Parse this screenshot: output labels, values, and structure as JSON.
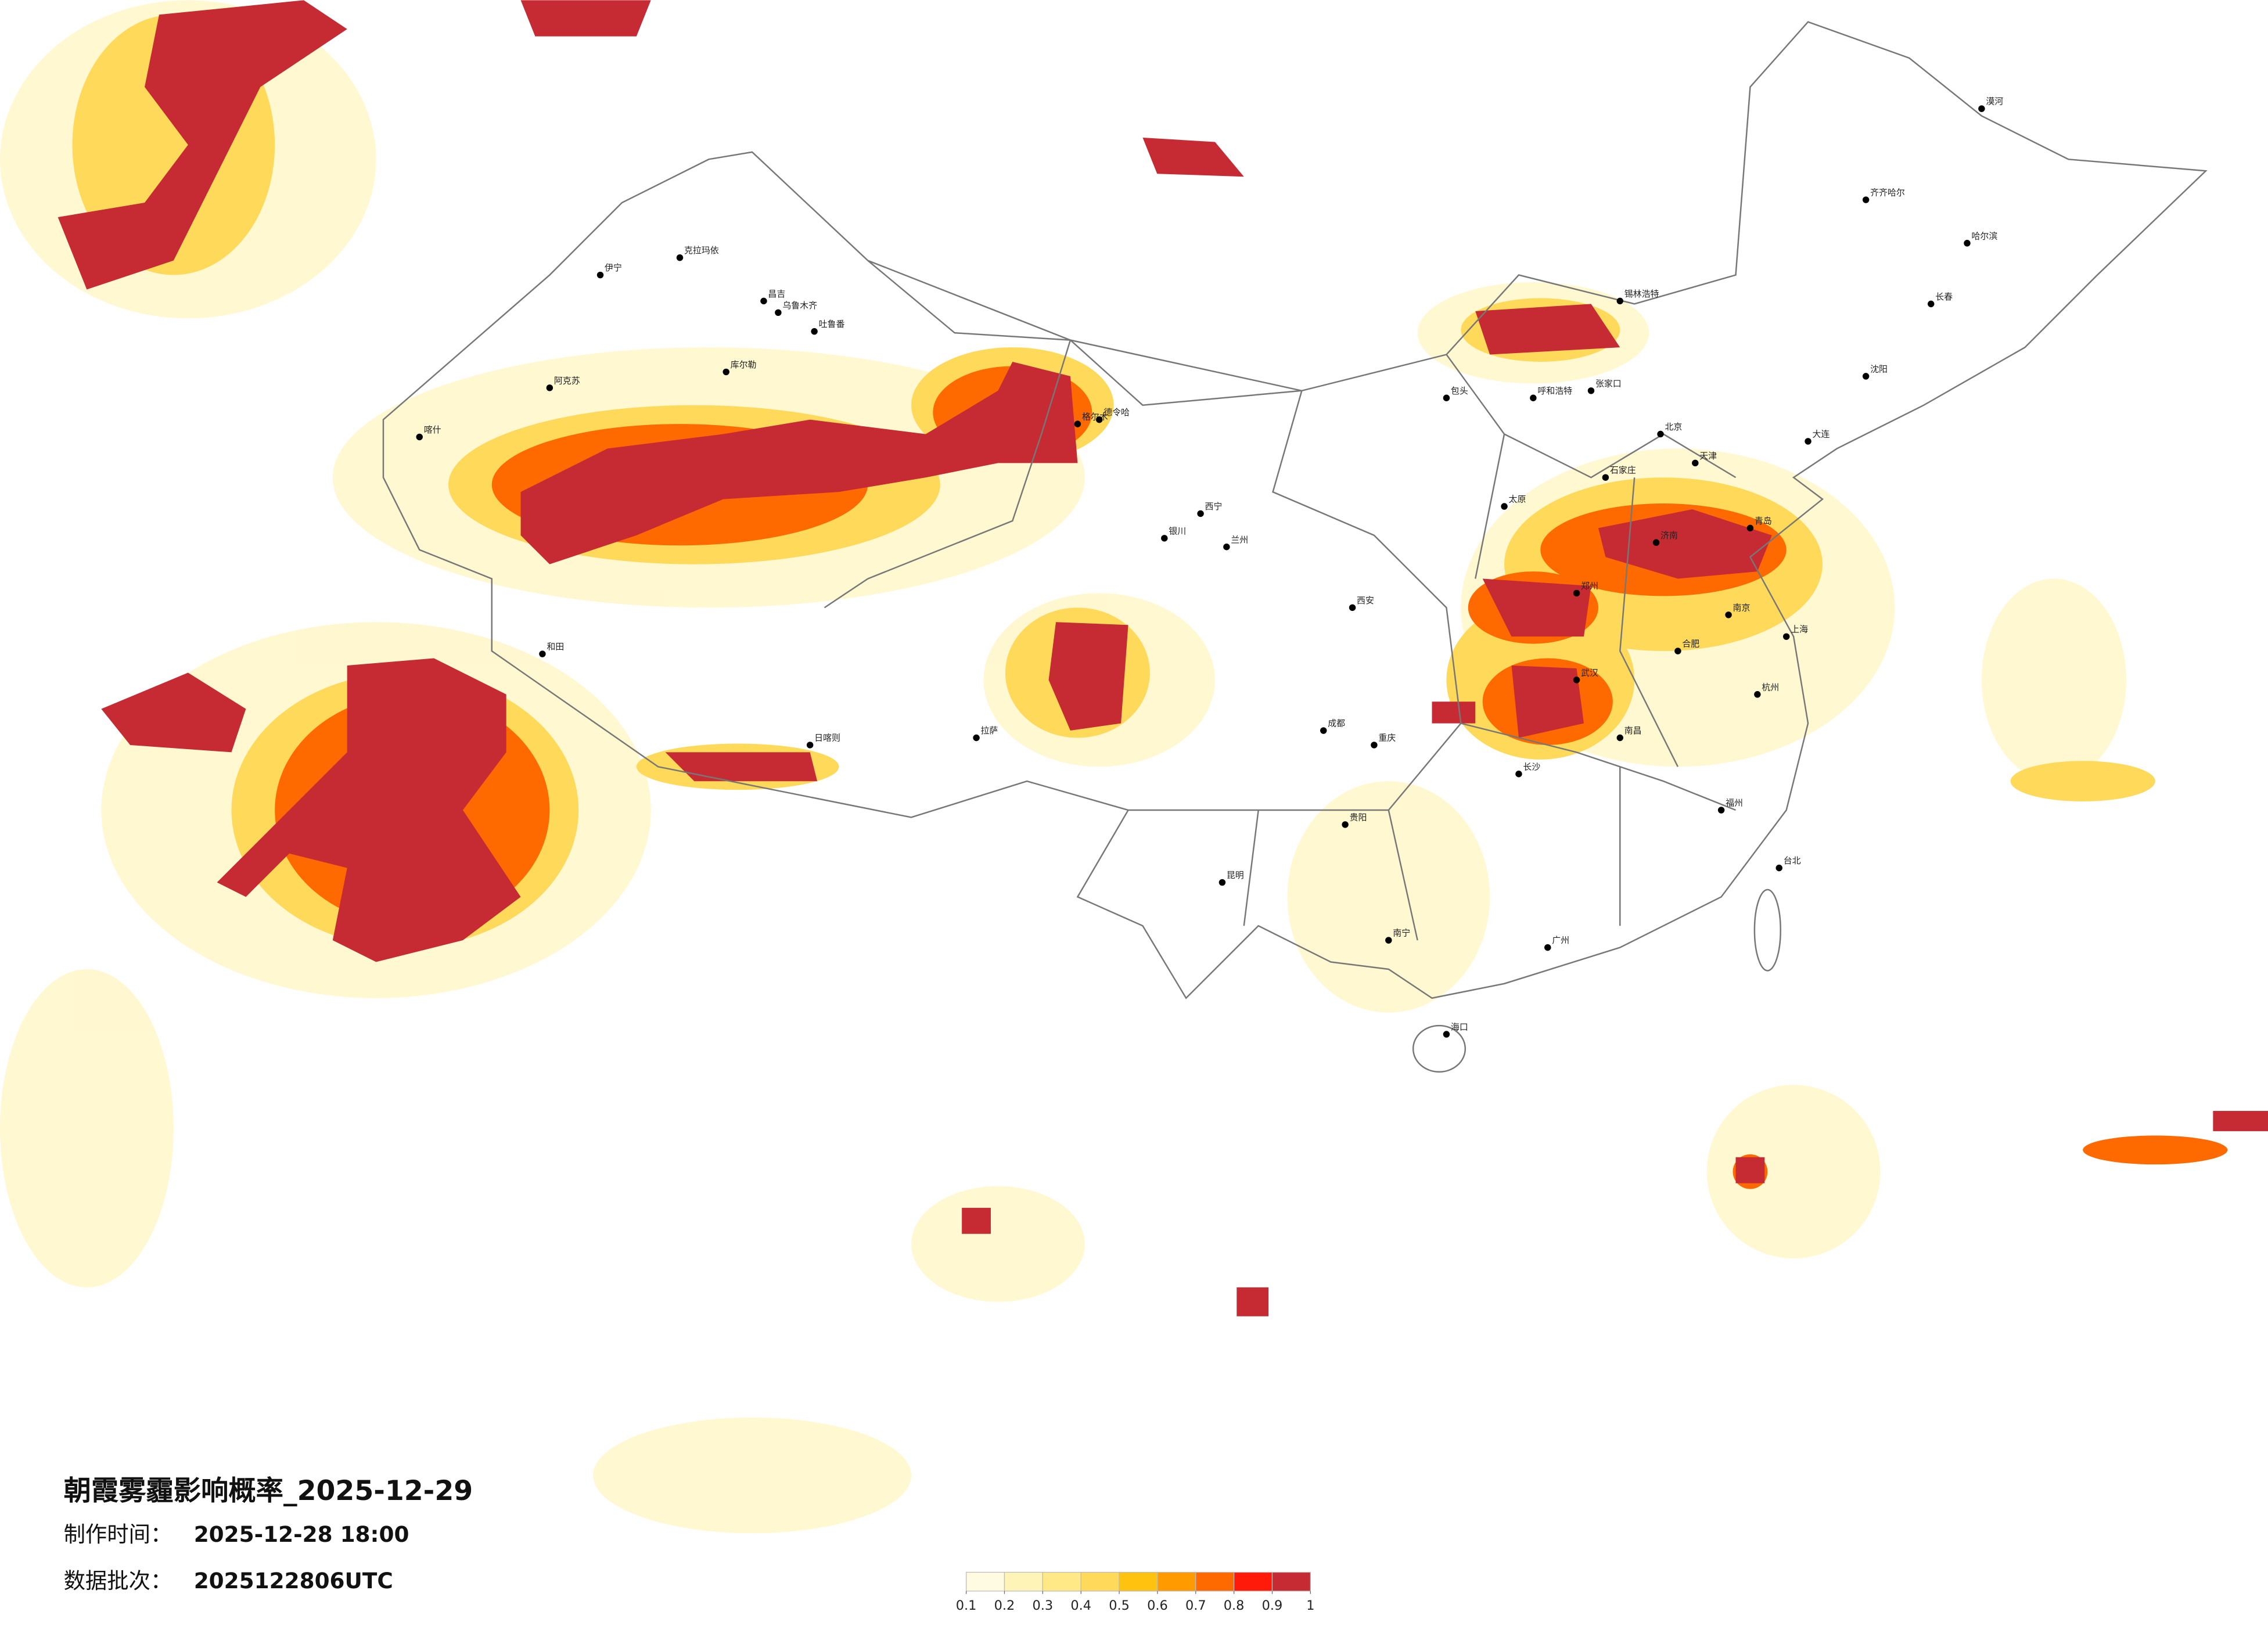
{
  "header": {
    "title": "朝霞雾霾影响概率_2025-12-29",
    "produced_label": "制作时间：",
    "produced_time": "2025-12-28 18:00",
    "batch_label": "数据批次：",
    "batch": "2025122806UTC"
  },
  "legend": {
    "ticks": [
      0.1,
      0.2,
      0.3,
      0.4,
      0.5,
      0.6,
      0.7,
      0.8,
      0.9,
      1
    ],
    "colors": [
      "#fffbe3",
      "#fff4b8",
      "#ffe986",
      "#ffd95a",
      "#ffc20e",
      "#ff9b00",
      "#ff6a00",
      "#ff1a0a",
      "#c62a32"
    ]
  },
  "cities": [
    "伊宁",
    "克拉玛依",
    "昌吉",
    "乌鲁木齐",
    "吐鲁番",
    "库尔勒",
    "阿克苏",
    "喀什",
    "和田",
    "格尔木",
    "德令哈",
    "西宁",
    "兰州",
    "银川",
    "呼和浩特",
    "包头",
    "北京",
    "天津",
    "石家庄",
    "太原",
    "济南",
    "青岛",
    "郑州",
    "西安",
    "成都",
    "重庆",
    "武汉",
    "长沙",
    "南昌",
    "合肥",
    "南京",
    "上海",
    "杭州",
    "福州",
    "广州",
    "南宁",
    "贵阳",
    "昆明",
    "拉萨",
    "日喀则",
    "哈尔滨",
    "长春",
    "沈阳",
    "大连",
    "海口",
    "台北",
    "漠河",
    "齐齐哈尔",
    "锡林浩特",
    "张家口"
  ]
}
